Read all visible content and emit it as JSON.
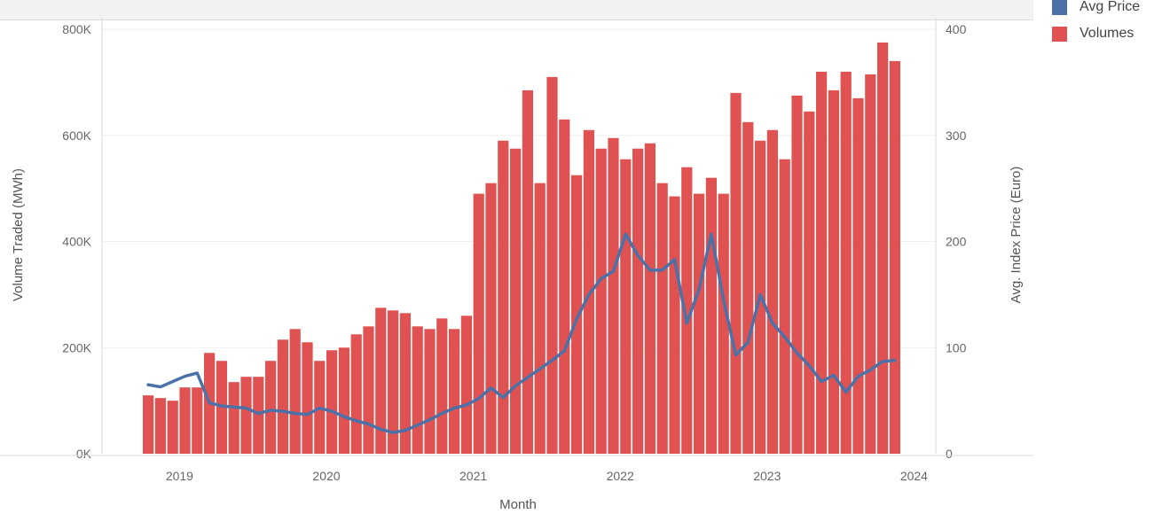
{
  "chart_data": {
    "type": "bar",
    "xlabel": "Month",
    "ylabel": "Volume Traded (MWh)",
    "y2label": "Avg. Index Price (Euro)",
    "ylim": [
      0,
      800000
    ],
    "y2lim": [
      0,
      400
    ],
    "y_ticks": [
      "0K",
      "200K",
      "400K",
      "600K",
      "800K"
    ],
    "y2_ticks": [
      "0",
      "100",
      "200",
      "300",
      "400"
    ],
    "x_ticks": [
      "2019",
      "2020",
      "2021",
      "2022",
      "2023",
      "2024"
    ],
    "x_start": "2018-10",
    "months": [
      "2018-10",
      "2018-11",
      "2018-12",
      "2019-01",
      "2019-02",
      "2019-03",
      "2019-04",
      "2019-05",
      "2019-06",
      "2019-07",
      "2019-08",
      "2019-09",
      "2019-10",
      "2019-11",
      "2019-12",
      "2020-01",
      "2020-02",
      "2020-03",
      "2020-04",
      "2020-05",
      "2020-06",
      "2020-07",
      "2020-08",
      "2020-09",
      "2020-10",
      "2020-11",
      "2020-12",
      "2021-01",
      "2021-02",
      "2021-03",
      "2021-04",
      "2021-05",
      "2021-06",
      "2021-07",
      "2021-08",
      "2021-09",
      "2021-10",
      "2021-11",
      "2021-12",
      "2022-01",
      "2022-02",
      "2022-03",
      "2022-04",
      "2022-05",
      "2022-06",
      "2022-07",
      "2022-08",
      "2022-09",
      "2022-10",
      "2022-11",
      "2022-12",
      "2023-01",
      "2023-02",
      "2023-03",
      "2023-04",
      "2023-05",
      "2023-06",
      "2023-07",
      "2023-08",
      "2023-09",
      "2023-10",
      "2023-11"
    ],
    "series": [
      {
        "name": "Volumes",
        "color": "#e05252",
        "axis": "left",
        "type": "bar",
        "values": [
          110000,
          105000,
          100000,
          125000,
          125000,
          190000,
          175000,
          135000,
          145000,
          145000,
          175000,
          215000,
          235000,
          210000,
          175000,
          195000,
          200000,
          225000,
          240000,
          275000,
          270000,
          265000,
          240000,
          235000,
          255000,
          235000,
          260000,
          490000,
          510000,
          590000,
          575000,
          685000,
          510000,
          710000,
          630000,
          525000,
          610000,
          575000,
          595000,
          555000,
          575000,
          585000,
          510000,
          485000,
          540000,
          490000,
          520000,
          490000,
          680000,
          625000,
          590000,
          610000,
          555000,
          675000,
          645000,
          720000,
          685000,
          720000,
          670000,
          715000,
          775000,
          740000
        ]
      },
      {
        "name": "Avg Price",
        "color": "#4a72a8",
        "axis": "right",
        "type": "line",
        "values": [
          65,
          63,
          68,
          73,
          76,
          48,
          45,
          44,
          43,
          38,
          41,
          40,
          38,
          37,
          43,
          40,
          35,
          31,
          28,
          23,
          20,
          22,
          27,
          32,
          38,
          43,
          46,
          52,
          62,
          53,
          64,
          72,
          80,
          88,
          97,
          127,
          150,
          165,
          172,
          207,
          187,
          173,
          173,
          183,
          123,
          155,
          207,
          145,
          93,
          105,
          150,
          123,
          110,
          95,
          83,
          68,
          74,
          58,
          73,
          79,
          87,
          88
        ]
      }
    ],
    "legend_position": "top-right",
    "grid": true
  }
}
